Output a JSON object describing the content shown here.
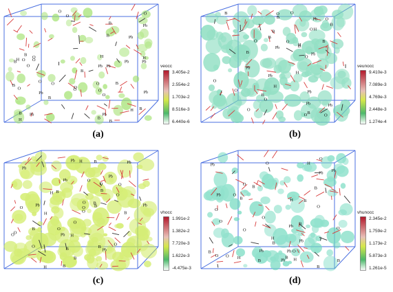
{
  "panels": [
    {
      "id": "a",
      "label": "(a)",
      "variable": "veocc",
      "ticks": [
        "3.405e-2",
        "2.554e-2",
        "1.703e-2",
        "8.516e-3",
        "6.440e-6"
      ],
      "scheme": "green",
      "density": 1,
      "atoms": [
        "Pb",
        "Pb",
        "Pb",
        "Pb",
        "Pb",
        "Pb",
        "Pb",
        "Pb",
        "Pb",
        "Pb",
        "B",
        "B",
        "B",
        "B",
        "B",
        "B",
        "B",
        "B",
        "B",
        "B",
        "B",
        "B",
        "O",
        "O",
        "O",
        "O",
        "O",
        "O",
        "O",
        "O",
        "O",
        "O",
        "O",
        "O",
        "O",
        "O",
        "O",
        "H",
        "H",
        "H",
        "H",
        "H"
      ]
    },
    {
      "id": "b",
      "label": "(b)",
      "variable": "veunocc",
      "ticks": [
        "9.410e-3",
        "7.089e-3",
        "4.769e-3",
        "2.448e-3",
        "1.274e-4"
      ],
      "scheme": "cyan",
      "density": 2.4,
      "atoms": [
        "Pb",
        "Pb",
        "Pb",
        "Pb",
        "Pb",
        "Pb",
        "Pb",
        "Pb",
        "B",
        "B",
        "B",
        "B",
        "B",
        "B",
        "B",
        "B",
        "B",
        "B",
        "O",
        "O",
        "O",
        "O",
        "O",
        "O",
        "O",
        "O",
        "O",
        "O",
        "O",
        "O",
        "O",
        "H",
        "H",
        "H",
        "H"
      ]
    },
    {
      "id": "c",
      "label": "(c)",
      "variable": "vhocc",
      "ticks": [
        "1.991e-2",
        "1.382e-2",
        "7.720e-3",
        "1.622e-3",
        "-4.475e-3"
      ],
      "scheme": "yellow",
      "density": 2.6,
      "atoms": [
        "Pb",
        "Pb",
        "Pb",
        "Pb",
        "Pb",
        "Pb",
        "Pb",
        "Pb",
        "Pb",
        "B",
        "B",
        "B",
        "B",
        "B",
        "B",
        "B",
        "B",
        "B",
        "B",
        "B",
        "O",
        "O",
        "O",
        "O",
        "O",
        "O",
        "O",
        "O",
        "O",
        "O",
        "O",
        "O",
        "O",
        "O",
        "H",
        "H",
        "H",
        "H",
        "H"
      ]
    },
    {
      "id": "d",
      "label": "(d)",
      "variable": "vhunocc",
      "ticks": [
        "2.345e-2",
        "1.759e-2",
        "1.173e-2",
        "5.873e-3",
        "1.261e-5"
      ],
      "scheme": "teal",
      "density": 1.6,
      "atoms": [
        "Pb",
        "Pb",
        "Pb",
        "Pb",
        "Pb",
        "Pb",
        "Pb",
        "Pb",
        "Pb",
        "B",
        "B",
        "B",
        "B",
        "B",
        "B",
        "B",
        "B",
        "B",
        "B",
        "B",
        "O",
        "O",
        "O",
        "O",
        "O",
        "O",
        "O",
        "O",
        "O",
        "O",
        "O",
        "O",
        "O",
        "H",
        "H",
        "H",
        "H",
        "H"
      ]
    }
  ],
  "colors": {
    "cube_edge": "#4a6fe0",
    "bond_red": "#d73a3a",
    "bond_dark": "#333333",
    "iso_green": "#9ee06a",
    "iso_cyan": "#72d6b2",
    "iso_yellow": "#c8e84a",
    "iso_teal": "#6cd8bc",
    "cbar_top": "#b2182b",
    "cbar_mid": "#d6e84a",
    "cbar_low": "#4cb86a",
    "cbar_bottom": "#ffffff"
  }
}
